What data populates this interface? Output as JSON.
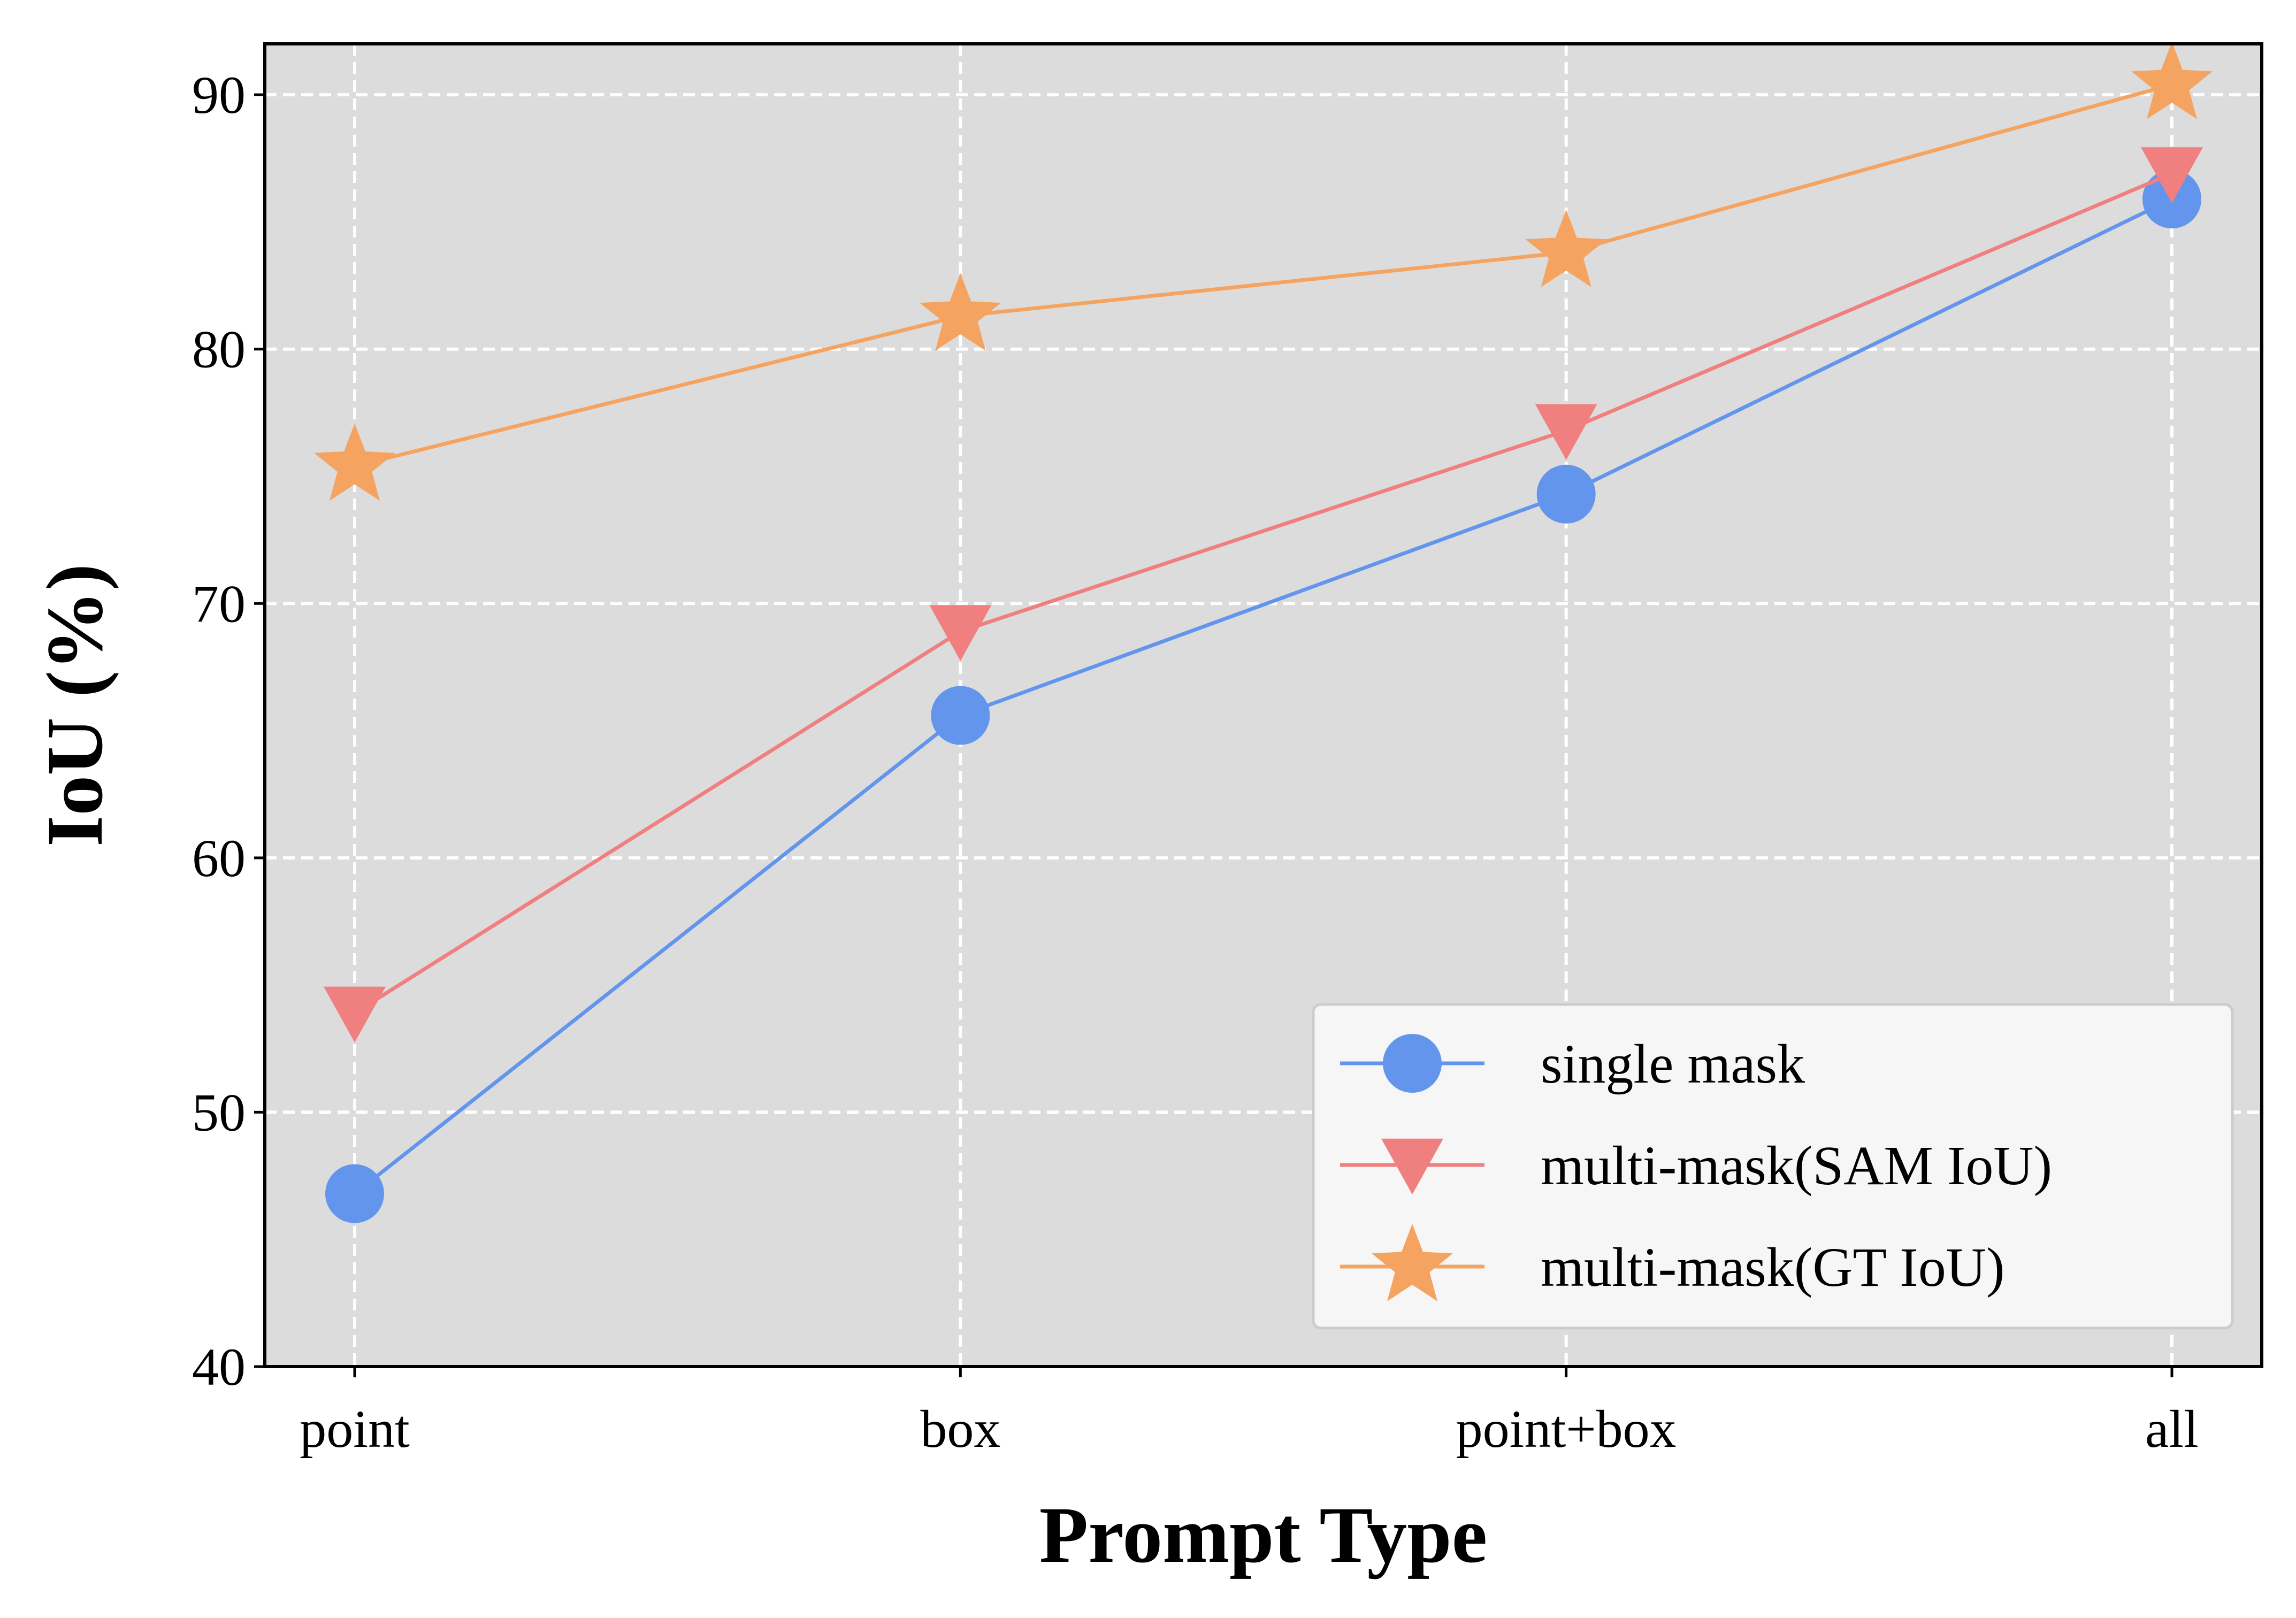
{
  "chart_data": {
    "type": "line",
    "title": "",
    "xlabel": "Prompt Type",
    "ylabel": "IoU (%)",
    "categories": [
      "point",
      "box",
      "point+box",
      "all"
    ],
    "ylim": [
      40,
      92
    ],
    "yticks": [
      40,
      50,
      60,
      70,
      80,
      90
    ],
    "grid": true,
    "legend_position": "lower-right",
    "background_color": "#dcdcdc",
    "series": [
      {
        "name": "single mask",
        "values": [
          46.8,
          65.6,
          74.3,
          85.9
        ],
        "color": "#6495ed",
        "marker": "circle"
      },
      {
        "name": "multi-mask(SAM IoU)",
        "values": [
          53.9,
          68.9,
          76.8,
          86.9
        ],
        "color": "#f08080",
        "marker": "triangle-down"
      },
      {
        "name": "multi-mask(GT IoU)",
        "values": [
          75.4,
          81.3,
          83.8,
          90.4
        ],
        "color": "#f4a460",
        "marker": "star"
      }
    ]
  }
}
